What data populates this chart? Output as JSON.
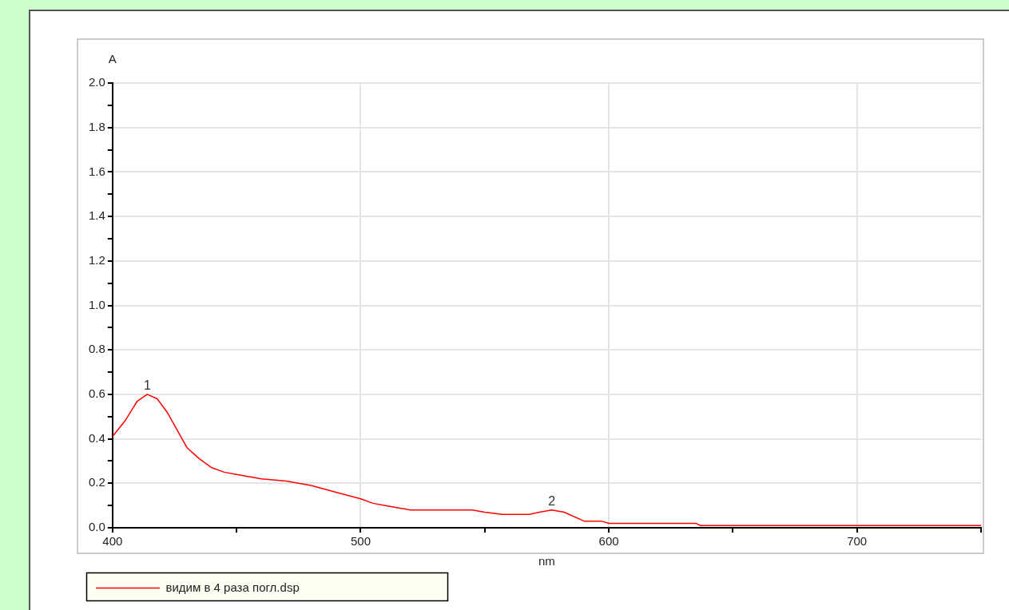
{
  "chart_data": {
    "type": "line",
    "xlabel": "nm",
    "ylabel": "A",
    "xlim": [
      400,
      750
    ],
    "xticks": [
      400,
      {
        "value": 450,
        "label": null
      },
      500,
      {
        "value": 550,
        "label": null
      },
      600,
      {
        "value": 650,
        "label": null
      },
      700,
      {
        "value": 750,
        "label": null
      }
    ],
    "ylim": [
      0,
      2
    ],
    "yticks": [
      {
        "value": 0,
        "label": "0.0"
      },
      {
        "value": 0.1,
        "label": null
      },
      {
        "value": 0.2,
        "label": "0.2"
      },
      {
        "value": 0.3,
        "label": null
      },
      {
        "value": 0.4,
        "label": "0.4"
      },
      {
        "value": 0.5,
        "label": null
      },
      {
        "value": 0.6,
        "label": "0.6"
      },
      {
        "value": 0.7,
        "label": null
      },
      {
        "value": 0.8,
        "label": "0.8"
      },
      {
        "value": 0.9,
        "label": null
      },
      {
        "value": 1,
        "label": "1.0"
      },
      {
        "value": 1.1,
        "label": null
      },
      {
        "value": 1.2,
        "label": "1.2"
      },
      {
        "value": 1.3,
        "label": null
      },
      {
        "value": 1.4,
        "label": "1.4"
      },
      {
        "value": 1.5,
        "label": null
      },
      {
        "value": 1.6,
        "label": "1.6"
      },
      {
        "value": 1.7,
        "label": null
      },
      {
        "value": 1.8,
        "label": "1.8"
      },
      {
        "value": 1.9,
        "label": null
      },
      {
        "value": 2,
        "label": "2.0"
      }
    ],
    "grid": true,
    "legend": "bottom",
    "marker": "none",
    "line_style": "solid",
    "series": [
      {
        "name": "видим в 4 раза погл.dsp",
        "color": "#ff0000",
        "x": [
          400,
          405,
          410,
          414,
          418,
          422,
          426,
          430,
          435,
          440,
          445,
          450,
          460,
          470,
          480,
          490,
          500,
          505,
          510,
          515,
          520,
          545,
          550,
          557,
          568,
          572,
          577,
          582,
          590,
          597,
          600,
          635,
          637,
          750
        ],
        "values": [
          0.41,
          0.48,
          0.57,
          0.6,
          0.58,
          0.52,
          0.44,
          0.36,
          0.31,
          0.27,
          0.25,
          0.24,
          0.22,
          0.21,
          0.19,
          0.16,
          0.13,
          0.11,
          0.1,
          0.09,
          0.08,
          0.08,
          0.07,
          0.06,
          0.06,
          0.07,
          0.08,
          0.07,
          0.03,
          0.03,
          0.02,
          0.02,
          0.01,
          0.01
        ]
      }
    ],
    "annotations": [
      {
        "text": "1",
        "x": 414,
        "y": 0.6
      },
      {
        "text": "2",
        "x": 577,
        "y": 0.08
      }
    ]
  }
}
